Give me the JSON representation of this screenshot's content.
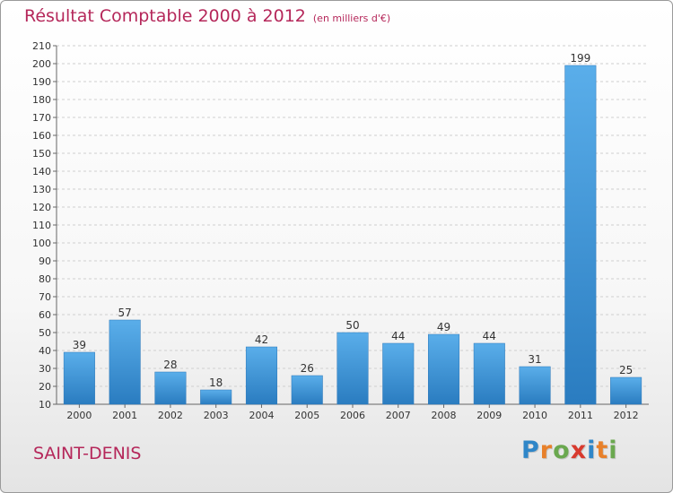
{
  "header": {
    "title": "Résultat Comptable 2000 à 2012",
    "subtitle": "(en milliers d'€)"
  },
  "footer": {
    "city": "SAINT-DENIS"
  },
  "logo": {
    "letters": [
      {
        "char": "P",
        "color": "#2f86c8"
      },
      {
        "char": "r",
        "color": "#e8802a"
      },
      {
        "char": "o",
        "color": "#6aa84f"
      },
      {
        "char": "x",
        "color": "#d83a2e"
      },
      {
        "char": "i",
        "color": "#2f86c8"
      },
      {
        "char": "t",
        "color": "#e8802a"
      },
      {
        "char": "i",
        "color": "#6aa84f"
      }
    ]
  },
  "chart_data": {
    "type": "bar",
    "title": "Résultat Comptable 2000 à 2012",
    "subtitle": "(en milliers d'€)",
    "categories": [
      "2000",
      "2001",
      "2002",
      "2003",
      "2004",
      "2005",
      "2006",
      "2007",
      "2008",
      "2009",
      "2010",
      "2011",
      "2012"
    ],
    "values": [
      39,
      57,
      28,
      18,
      42,
      26,
      50,
      44,
      49,
      44,
      31,
      199,
      25
    ],
    "ylim": [
      10,
      210
    ],
    "yticks": [
      10,
      20,
      30,
      40,
      50,
      60,
      70,
      80,
      90,
      100,
      110,
      120,
      130,
      140,
      150,
      160,
      170,
      180,
      190,
      200,
      210
    ],
    "grid": true,
    "bar_color": "#4a9fe0"
  }
}
